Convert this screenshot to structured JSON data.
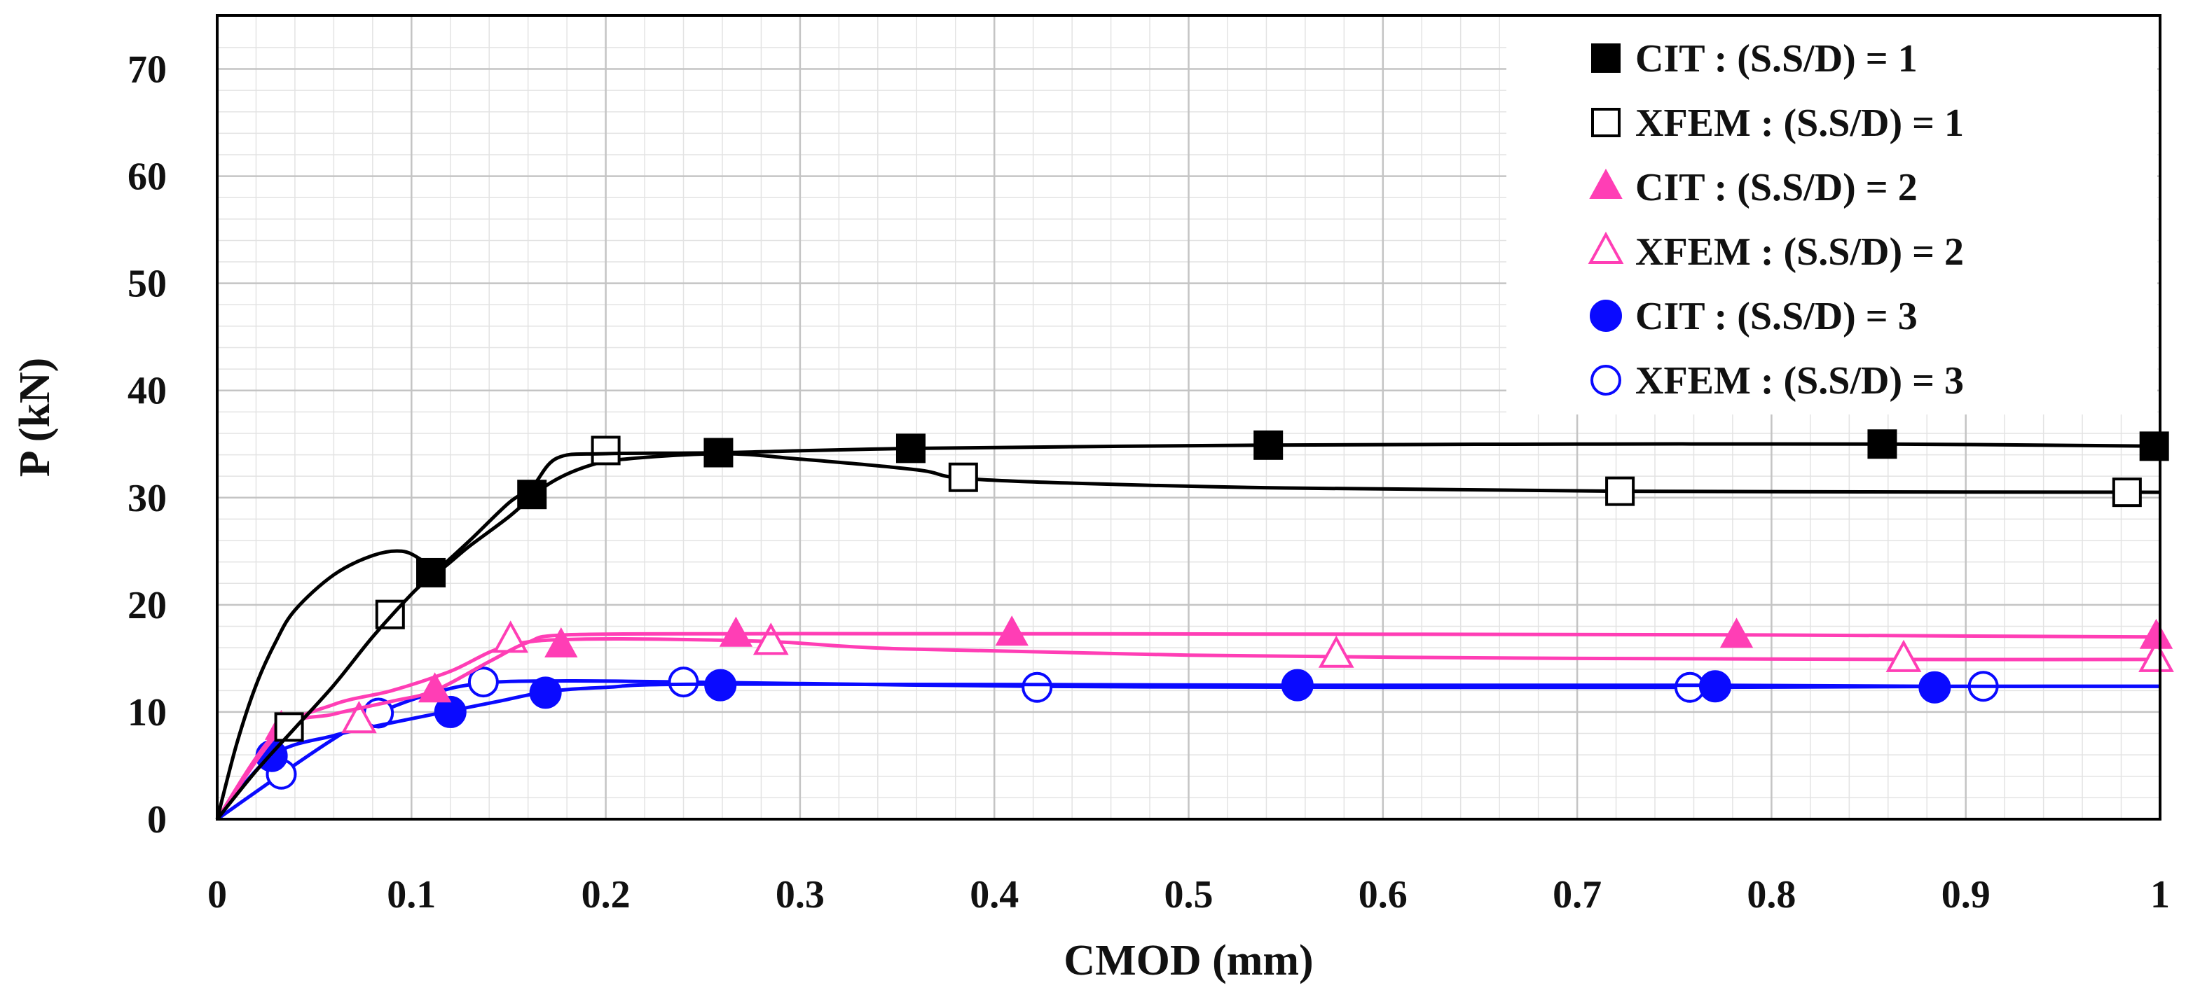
{
  "chart_data": {
    "type": "line",
    "title": "",
    "xlabel": "CMOD (mm)",
    "ylabel": "P (kN)",
    "xlim": [
      0,
      1
    ],
    "ylim": [
      0,
      75
    ],
    "x_ticks": [
      "0",
      "0.1",
      "0.2",
      "0.3",
      "0.4",
      "0.5",
      "0.6",
      "0.7",
      "0.8",
      "0.9",
      "1"
    ],
    "y_ticks": [
      "0",
      "10",
      "20",
      "30",
      "40",
      "50",
      "60",
      "70"
    ],
    "grid": true,
    "legend_position": "top-right",
    "series": [
      {
        "name": "CIT : (S.S/D) = 1",
        "color": "#000000",
        "marker": "square",
        "filled": true,
        "curve": [
          [
            0,
            0
          ],
          [
            0.02,
            4.5
          ],
          [
            0.04,
            8.5
          ],
          [
            0.06,
            12.5
          ],
          [
            0.08,
            17
          ],
          [
            0.1,
            21
          ],
          [
            0.112,
            23
          ],
          [
            0.13,
            26
          ],
          [
            0.15,
            29.5
          ],
          [
            0.162,
            31
          ],
          [
            0.175,
            33.7
          ],
          [
            0.2,
            34.1
          ],
          [
            0.26,
            34.2
          ],
          [
            0.36,
            34.6
          ],
          [
            0.54,
            34.9
          ],
          [
            0.7,
            35
          ],
          [
            0.86,
            35
          ],
          [
            1.0,
            34.8
          ]
        ],
        "markers": [
          [
            0.11,
            23
          ],
          [
            0.162,
            30.3
          ],
          [
            0.258,
            34.2
          ],
          [
            0.357,
            34.6
          ],
          [
            0.541,
            34.9
          ],
          [
            0.857,
            35
          ],
          [
            0.997,
            34.8
          ]
        ]
      },
      {
        "name": "XFEM : (S.S/D) = 1",
        "color": "#000000",
        "marker": "square",
        "filled": false,
        "curve": [
          [
            0,
            0
          ],
          [
            0.01,
            7
          ],
          [
            0.02,
            12.5
          ],
          [
            0.03,
            16.5
          ],
          [
            0.04,
            19.5
          ],
          [
            0.06,
            22.8
          ],
          [
            0.08,
            24.6
          ],
          [
            0.095,
            25
          ],
          [
            0.105,
            24.2
          ],
          [
            0.112,
            23
          ],
          [
            0.13,
            25.5
          ],
          [
            0.15,
            28.2
          ],
          [
            0.17,
            31.2
          ],
          [
            0.19,
            32.9
          ],
          [
            0.21,
            33.6
          ],
          [
            0.26,
            34.1
          ],
          [
            0.3,
            33.6
          ],
          [
            0.36,
            32.6
          ],
          [
            0.384,
            31.8
          ],
          [
            0.45,
            31.3
          ],
          [
            0.55,
            30.9
          ],
          [
            0.72,
            30.6
          ],
          [
            1.0,
            30.5
          ]
        ],
        "markers": [
          [
            0.037,
            8.6
          ],
          [
            0.089,
            19.1
          ],
          [
            0.2,
            34.4
          ],
          [
            0.384,
            31.9
          ],
          [
            0.722,
            30.6
          ],
          [
            0.983,
            30.5
          ]
        ]
      },
      {
        "name": "CIT : (S.S/D) = 2",
        "color": "#ff3eb5",
        "marker": "triangle",
        "filled": true,
        "curve": [
          [
            0,
            0
          ],
          [
            0.033,
            8.3
          ],
          [
            0.06,
            9.8
          ],
          [
            0.09,
            11
          ],
          [
            0.112,
            12
          ],
          [
            0.14,
            14.7
          ],
          [
            0.16,
            16.5
          ],
          [
            0.18,
            17.2
          ],
          [
            0.27,
            17.3
          ],
          [
            0.41,
            17.3
          ],
          [
            0.78,
            17.2
          ],
          [
            1.0,
            17
          ]
        ],
        "markers": [
          [
            0.033,
            8.5
          ],
          [
            0.112,
            12
          ],
          [
            0.177,
            16.2
          ],
          [
            0.267,
            17.2
          ],
          [
            0.409,
            17.3
          ],
          [
            0.782,
            17.1
          ],
          [
            0.998,
            17
          ]
        ]
      },
      {
        "name": "XFEM : (S.S/D) = 2",
        "color": "#ff3eb5",
        "marker": "triangle",
        "filled": false,
        "curve": [
          [
            0,
            0
          ],
          [
            0.03,
            8
          ],
          [
            0.06,
            10.7
          ],
          [
            0.09,
            12
          ],
          [
            0.12,
            13.8
          ],
          [
            0.15,
            16.2
          ],
          [
            0.19,
            16.8
          ],
          [
            0.28,
            16.6
          ],
          [
            0.35,
            15.9
          ],
          [
            0.5,
            15.3
          ],
          [
            0.7,
            15
          ],
          [
            0.87,
            14.9
          ],
          [
            1.0,
            14.9
          ]
        ],
        "markers": [
          [
            0.073,
            9.2
          ],
          [
            0.151,
            16.7
          ],
          [
            0.285,
            16.5
          ],
          [
            0.576,
            15.3
          ],
          [
            0.868,
            14.9
          ],
          [
            0.998,
            14.9
          ]
        ]
      },
      {
        "name": "CIT : (S.S/D) = 3",
        "color": "#0a0aff",
        "marker": "circle",
        "filled": true,
        "curve": [
          [
            0,
            0
          ],
          [
            0.028,
            5.9
          ],
          [
            0.06,
            7.8
          ],
          [
            0.09,
            9
          ],
          [
            0.12,
            10.1
          ],
          [
            0.145,
            11
          ],
          [
            0.17,
            11.9
          ],
          [
            0.2,
            12.3
          ],
          [
            0.26,
            12.6
          ],
          [
            0.556,
            12.5
          ],
          [
            0.77,
            12.5
          ],
          [
            0.884,
            12.4
          ],
          [
            1.0,
            12.4
          ]
        ],
        "markers": [
          [
            0.028,
            5.9
          ],
          [
            0.12,
            10
          ],
          [
            0.169,
            11.8
          ],
          [
            0.259,
            12.5
          ],
          [
            0.556,
            12.5
          ],
          [
            0.771,
            12.4
          ],
          [
            0.884,
            12.3
          ]
        ]
      },
      {
        "name": "XFEM : (S.S/D) = 3",
        "color": "#0a0aff",
        "marker": "circle",
        "filled": false,
        "curve": [
          [
            0,
            0
          ],
          [
            0.033,
            4.2
          ],
          [
            0.06,
            7.5
          ],
          [
            0.083,
            9.9
          ],
          [
            0.11,
            11.7
          ],
          [
            0.137,
            12.7
          ],
          [
            0.18,
            12.9
          ],
          [
            0.24,
            12.8
          ],
          [
            0.42,
            12.4
          ],
          [
            0.6,
            12.3
          ],
          [
            0.76,
            12.3
          ],
          [
            0.91,
            12.4
          ],
          [
            1.0,
            12.4
          ]
        ],
        "markers": [
          [
            0.033,
            4.2
          ],
          [
            0.083,
            9.9
          ],
          [
            0.137,
            12.8
          ],
          [
            0.24,
            12.8
          ],
          [
            0.422,
            12.3
          ],
          [
            0.758,
            12.3
          ],
          [
            0.909,
            12.4
          ]
        ]
      }
    ]
  }
}
